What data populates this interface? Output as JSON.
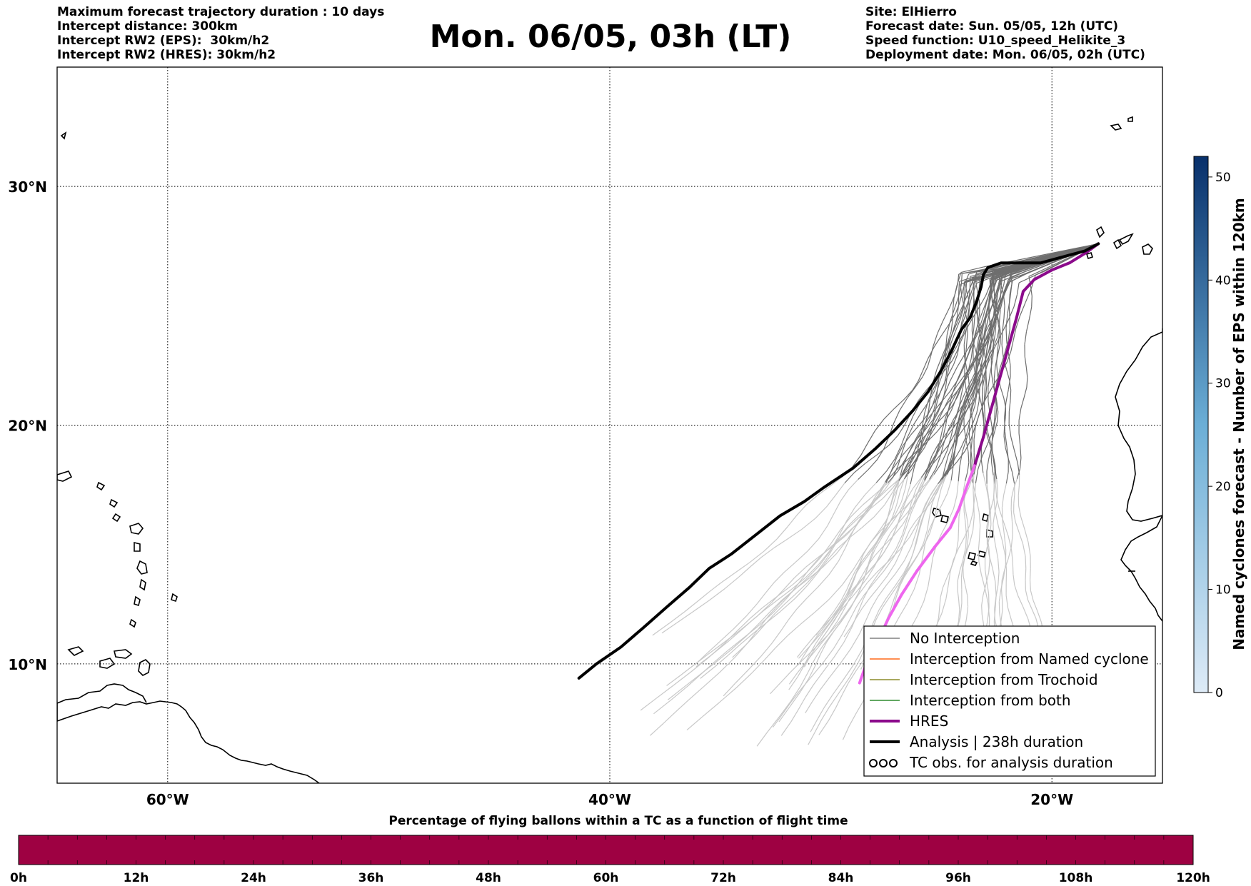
{
  "header": {
    "title": "Mon. 06/05, 03h (LT)",
    "left_lines": [
      "Maximum forecast trajectory duration : 10 days",
      "Intercept distance: 300km",
      "Intercept RW2 (EPS):  30km/h2",
      "Intercept RW2 (HRES): 30km/h2"
    ],
    "right_lines": [
      "Site: ElHierro",
      "Forecast date: Sun. 05/05, 12h (UTC)",
      "Speed function: U10_speed_Helikite_3",
      "Deployment date: Mon. 06/05, 02h (UTC)"
    ]
  },
  "map": {
    "lon_range": [
      -65,
      -15
    ],
    "lat_range": [
      5,
      35
    ],
    "lon_ticks": [
      {
        "value": -60,
        "label": "60°W"
      },
      {
        "value": -40,
        "label": "40°W"
      },
      {
        "value": -20,
        "label": "20°W"
      }
    ],
    "lat_ticks": [
      {
        "value": 10,
        "label": "10°N"
      },
      {
        "value": 20,
        "label": "20°N"
      },
      {
        "value": 30,
        "label": "30°N"
      }
    ],
    "gridlines": true,
    "launch_site": {
      "lon": -17.9,
      "lat": 27.6
    },
    "hres_track": [
      [
        -17.9,
        27.6
      ],
      [
        -18.5,
        27.2
      ],
      [
        -19.2,
        26.8
      ],
      [
        -20,
        26.5
      ],
      [
        -20.8,
        26.1
      ],
      [
        -21.3,
        25.6
      ],
      [
        -21.6,
        24.5
      ],
      [
        -21.9,
        23.5
      ],
      [
        -22.2,
        22.5
      ],
      [
        -22.5,
        21.5
      ],
      [
        -22.8,
        20.5
      ],
      [
        -23.1,
        19.5
      ],
      [
        -23.5,
        18.3
      ],
      [
        -23.9,
        17.3
      ],
      [
        -24.2,
        16.5
      ],
      [
        -24.6,
        15.7
      ],
      [
        -25.3,
        14.9
      ],
      [
        -26.1,
        13.9
      ],
      [
        -26.8,
        12.9
      ],
      [
        -27.4,
        11.9
      ],
      [
        -27.9,
        10.9
      ],
      [
        -28.4,
        10
      ],
      [
        -28.7,
        9.2
      ]
    ],
    "hres_pink_from_lat": 18.3,
    "analysis_track": [
      [
        -17.9,
        27.6
      ],
      [
        -18.5,
        27.3
      ],
      [
        -19.3,
        27.1
      ],
      [
        -20.5,
        26.8
      ],
      [
        -21.3,
        26.8
      ],
      [
        -22.3,
        26.8
      ],
      [
        -22.9,
        26.6
      ],
      [
        -23.1,
        26.3
      ],
      [
        -23.2,
        25.8
      ],
      [
        -23.4,
        25.2
      ],
      [
        -23.7,
        24.5
      ],
      [
        -24.1,
        24
      ],
      [
        -24.5,
        23.2
      ],
      [
        -25,
        22.3
      ],
      [
        -25.6,
        21.4
      ],
      [
        -26.3,
        20.6
      ],
      [
        -27.1,
        19.8
      ],
      [
        -28,
        19
      ],
      [
        -29,
        18.2
      ],
      [
        -30.3,
        17.4
      ],
      [
        -31.2,
        16.8
      ],
      [
        -32.3,
        16.2
      ],
      [
        -33.4,
        15.4
      ],
      [
        -34.5,
        14.6
      ],
      [
        -35.5,
        14
      ],
      [
        -36.4,
        13.2
      ],
      [
        -37.4,
        12.4
      ],
      [
        -38.5,
        11.5
      ],
      [
        -39.5,
        10.7
      ],
      [
        -40.6,
        10
      ],
      [
        -41.4,
        9.4
      ]
    ]
  },
  "legend": {
    "items": [
      {
        "label": "No Interception",
        "color": "#808080",
        "style": "thin"
      },
      {
        "label": "Interception from Named cyclone",
        "color": "#ff6a1a",
        "style": "thin"
      },
      {
        "label": "Interception from Trochoid",
        "color": "#8b8b2a",
        "style": "thin"
      },
      {
        "label": "Interception from both",
        "color": "#2e8b2e",
        "style": "thin"
      },
      {
        "label": "HRES",
        "color": "#8b0a8b",
        "style": "thick"
      },
      {
        "label": "Analysis | 238h duration",
        "color": "#000000",
        "style": "thick"
      },
      {
        "label": "TC obs. for analysis duration",
        "color": "#000000",
        "style": "symbol"
      }
    ]
  },
  "colorbar": {
    "label": "Named cyclones forecast - Number of EPS within 120km",
    "min": 0,
    "max": 52,
    "ticks": [
      0,
      10,
      20,
      30,
      40,
      50
    ],
    "color_low": "#deebf7",
    "color_high": "#08306b"
  },
  "timebar": {
    "title": "Percentage of flying ballons within a TC as a function of flight time",
    "ticks": [
      "0h",
      "12h",
      "24h",
      "36h",
      "48h",
      "60h",
      "72h",
      "84h",
      "96h",
      "108h",
      "120h"
    ],
    "fill_color": "#9e0142",
    "percent_all_hours": 0
  }
}
